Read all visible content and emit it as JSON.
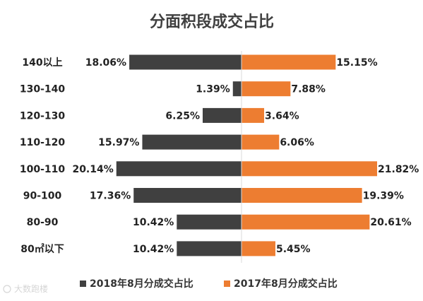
{
  "chart_data": {
    "type": "bar",
    "title": "分面积段成交占比",
    "categories": [
      "140以上",
      "130-140",
      "120-130",
      "110-120",
      "100-110",
      "90-100",
      "80-90",
      "80㎡以下"
    ],
    "series": [
      {
        "name": "2018年8月分成交占比",
        "color": "#404040",
        "values": [
          18.06,
          1.39,
          6.25,
          15.97,
          20.14,
          17.36,
          10.42,
          10.42
        ],
        "labels": [
          "18.06%",
          "1.39%",
          "6.25%",
          "15.97%",
          "20.14%",
          "17.36%",
          "10.42%",
          "10.42%"
        ]
      },
      {
        "name": "2017年8月分成交占比",
        "color": "#ED7D31",
        "values": [
          15.15,
          7.88,
          3.64,
          6.06,
          21.82,
          19.39,
          20.61,
          5.45
        ],
        "labels": [
          "15.15%",
          "7.88%",
          "3.64%",
          "6.06%",
          "21.82%",
          "19.39%",
          "20.61%",
          "5.45%"
        ]
      }
    ],
    "layout": "butterfly (2018 left, 2017 right)",
    "legend_position": "bottom",
    "grid": false
  },
  "watermark": "大数跑楼"
}
